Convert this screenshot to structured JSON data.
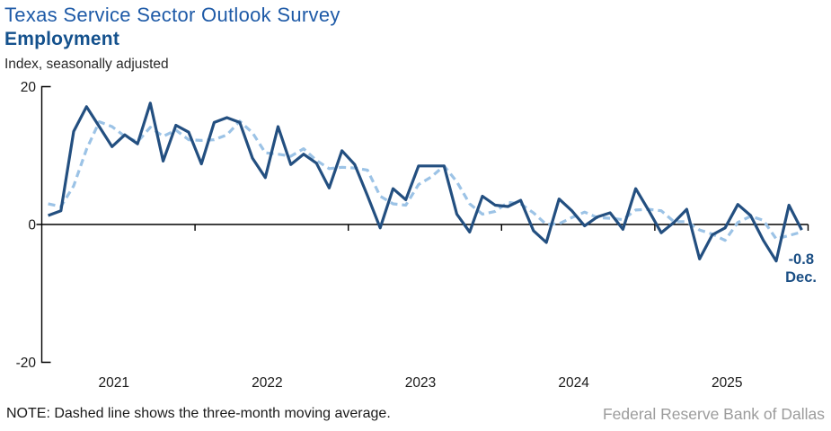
{
  "header": {
    "title": "Texas Service Sector Outlook Survey",
    "subtitle": "Employment",
    "unit_label": "Index, seasonally adjusted"
  },
  "footer": {
    "note": "NOTE: Dashed line shows the three-month moving average.",
    "source": "Federal Reserve Bank of Dallas"
  },
  "colors": {
    "title_blue": "#1e5aa7",
    "subtitle_blue": "#14518d",
    "solid_line": "#234f80",
    "dashed_line": "#9cc3e6",
    "axis": "#000000",
    "tick_label": "#1a1a1a",
    "annotation": "#1a4e84",
    "source_gray": "#9b9b9b"
  },
  "chart_data": {
    "type": "line",
    "title": "Texas Service Sector Outlook Survey",
    "subtitle": "Employment",
    "ylabel": "Index, seasonally adjusted",
    "x_start": "2021-01",
    "frequency": "monthly",
    "x_tick_years": [
      "2021",
      "2022",
      "2023",
      "2024",
      "2025"
    ],
    "y_ticks": [
      20,
      0,
      -20
    ],
    "ylim": [
      -20,
      20
    ],
    "grid": false,
    "legend_position": "none",
    "last_point_annotation": {
      "value": "-0.8",
      "month": "Dec."
    },
    "series": [
      {
        "name": "Employment index",
        "style": "solid",
        "color": "#234f80",
        "values": [
          1.3,
          2.0,
          13.5,
          17.1,
          14.2,
          11.3,
          13.0,
          11.7,
          17.6,
          9.2,
          14.4,
          13.4,
          8.8,
          14.8,
          15.5,
          14.8,
          9.6,
          6.8,
          14.2,
          8.7,
          10.2,
          8.9,
          5.3,
          10.7,
          8.7,
          4.2,
          -0.5,
          5.2,
          3.6,
          8.5,
          8.5,
          8.5,
          1.5,
          -1.1,
          4.1,
          2.8,
          2.6,
          3.5,
          -0.9,
          -2.6,
          3.7,
          2.0,
          -0.2,
          1.1,
          1.7,
          -0.7,
          5.2,
          2.1,
          -1.2,
          0.3,
          2.2,
          -5.0,
          -1.5,
          -0.5,
          2.9,
          1.3,
          -2.3,
          -5.3,
          2.8,
          -0.8
        ]
      },
      {
        "name": "Three-month moving average",
        "style": "dashed",
        "color": "#9cc3e6",
        "values": [
          3.0,
          2.6,
          5.6,
          10.9,
          14.9,
          14.2,
          12.8,
          12.0,
          14.1,
          12.8,
          13.7,
          12.3,
          12.2,
          12.3,
          13.0,
          15.0,
          13.3,
          10.4,
          10.2,
          9.9,
          11.0,
          9.3,
          8.1,
          8.3,
          8.2,
          7.9,
          4.1,
          3.0,
          2.8,
          5.8,
          6.9,
          8.5,
          6.2,
          3.0,
          1.5,
          1.9,
          3.2,
          3.0,
          1.7,
          0.0,
          0.1,
          1.0,
          1.8,
          1.0,
          0.9,
          0.7,
          2.1,
          2.2,
          2.0,
          0.4,
          0.4,
          -0.8,
          -1.4,
          -2.3,
          0.3,
          1.2,
          0.6,
          -2.1,
          -1.6,
          -1.1
        ]
      }
    ]
  }
}
